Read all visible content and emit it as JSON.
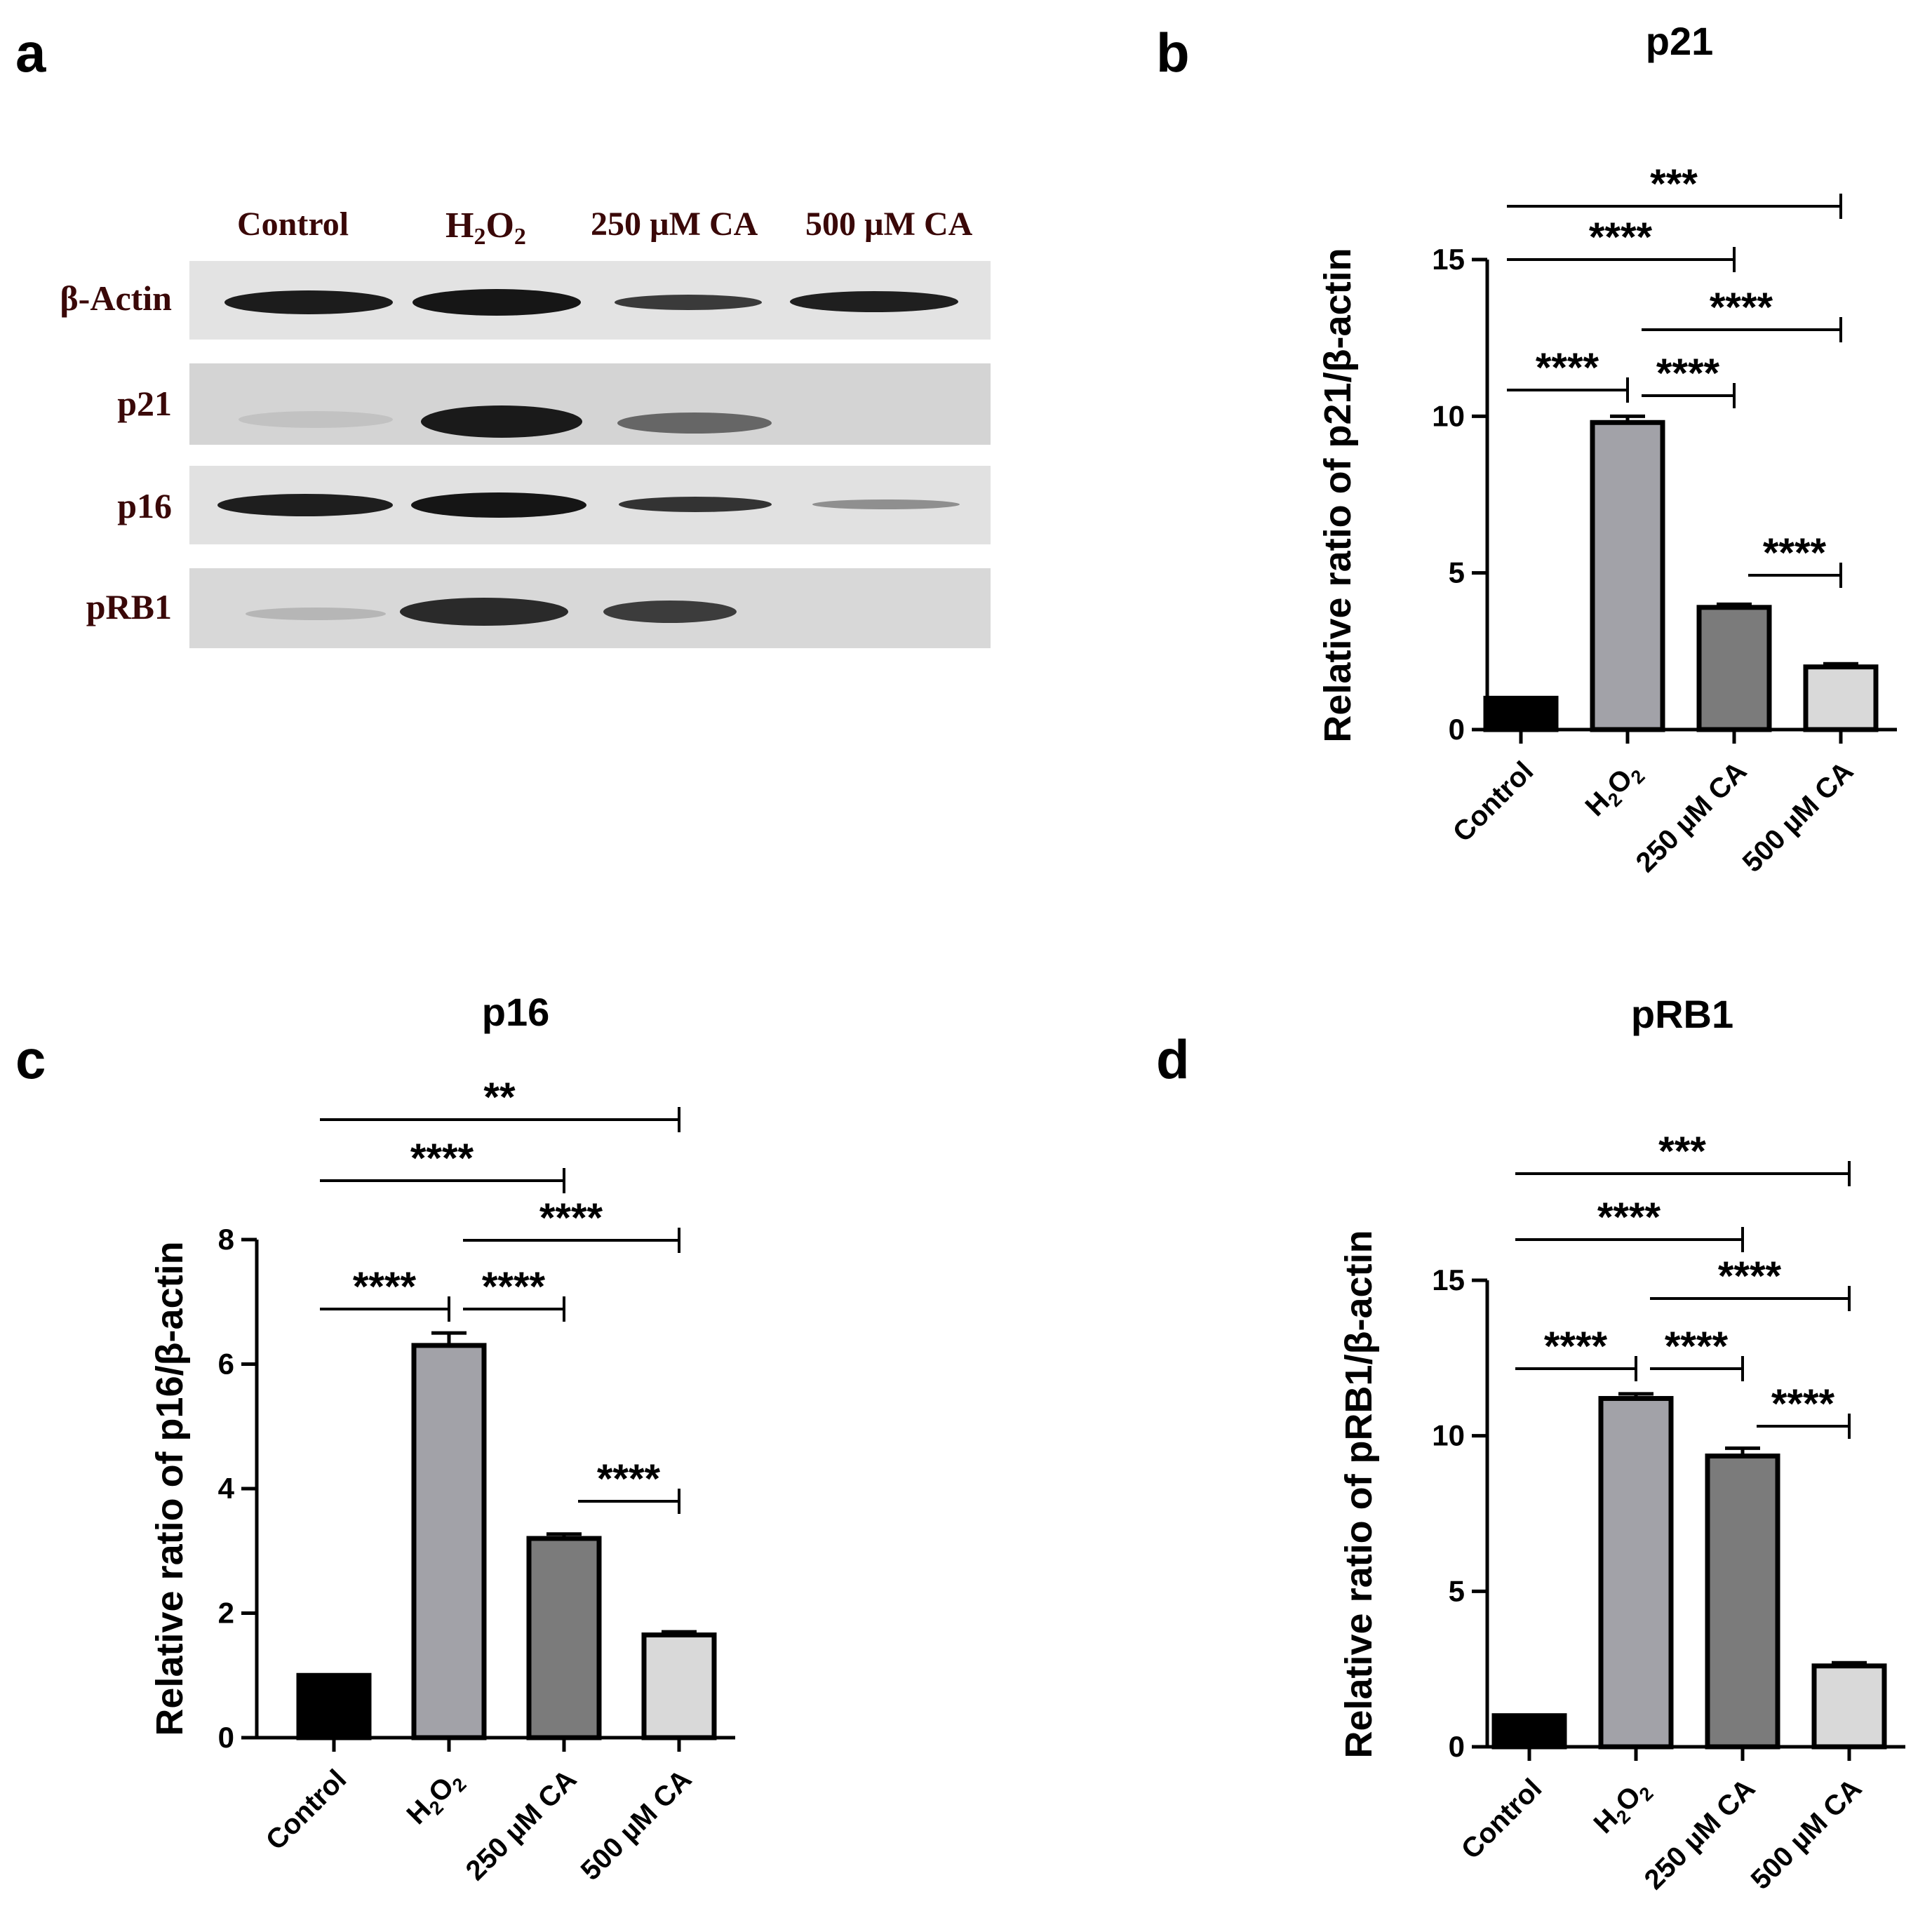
{
  "panels": {
    "a": "a",
    "b": "b",
    "c": "c",
    "d": "d"
  },
  "blot": {
    "lanes": [
      "Control",
      "H2O2",
      "250 µM CA",
      "500 µM CA"
    ],
    "lane_h2o2": {
      "main": "H",
      "sub1": "2",
      "mid": "O",
      "sub2": "2"
    },
    "rows": [
      "β-Actin",
      "p21",
      "p16",
      "pRB1"
    ]
  },
  "colors": {
    "Control": "#000000",
    "H2O2": "#a2a2a8",
    "250 µM CA": "#7b7b7b",
    "500 µM CA": "#d9d9d9"
  },
  "chart_data": [
    {
      "panel": "b",
      "type": "bar",
      "title": "p21",
      "ylabel": "Relative ratio of p21/β-actin",
      "categories": [
        "Control",
        "H2O2",
        "250 µM CA",
        "500 µM CA"
      ],
      "values": [
        1.0,
        9.8,
        3.9,
        2.0
      ],
      "errors": [
        0,
        0.2,
        0.1,
        0.1
      ],
      "ylim": [
        0,
        15
      ],
      "yticks": [
        0,
        5,
        10,
        15
      ],
      "significance": [
        {
          "from": 0,
          "to": 1,
          "label": "****"
        },
        {
          "from": 1,
          "to": 2,
          "label": "****"
        },
        {
          "from": 2,
          "to": 3,
          "label": "****"
        },
        {
          "from": 0,
          "to": 2,
          "label": "****"
        },
        {
          "from": 0,
          "to": 3,
          "label": "***"
        },
        {
          "from": 1,
          "to": 3,
          "label": "****"
        }
      ]
    },
    {
      "panel": "c",
      "type": "bar",
      "title": "p16",
      "ylabel": "Relative ratio of p16/β-actin",
      "categories": [
        "Control",
        "H2O2",
        "250 µM CA",
        "500 µM CA"
      ],
      "values": [
        1.0,
        6.3,
        3.2,
        1.65
      ],
      "errors": [
        0,
        0.2,
        0.07,
        0.05
      ],
      "ylim": [
        0,
        8
      ],
      "yticks": [
        0,
        2,
        4,
        6,
        8
      ],
      "significance": [
        {
          "from": 0,
          "to": 1,
          "label": "****"
        },
        {
          "from": 1,
          "to": 2,
          "label": "****"
        },
        {
          "from": 2,
          "to": 3,
          "label": "****"
        },
        {
          "from": 0,
          "to": 2,
          "label": "****"
        },
        {
          "from": 0,
          "to": 3,
          "label": "**"
        },
        {
          "from": 1,
          "to": 3,
          "label": "****"
        }
      ]
    },
    {
      "panel": "d",
      "type": "bar",
      "title": "pRB1",
      "ylabel": "Relative ratio of pRB1/β-actin",
      "categories": [
        "Control",
        "H2O2",
        "250 µM CA",
        "500 µM CA"
      ],
      "values": [
        1.0,
        11.2,
        9.35,
        2.6
      ],
      "errors": [
        0,
        0.15,
        0.25,
        0.1
      ],
      "ylim": [
        0,
        15
      ],
      "yticks": [
        0,
        5,
        10,
        15
      ],
      "significance": [
        {
          "from": 0,
          "to": 1,
          "label": "****"
        },
        {
          "from": 1,
          "to": 2,
          "label": "****"
        },
        {
          "from": 2,
          "to": 3,
          "label": "****"
        },
        {
          "from": 0,
          "to": 2,
          "label": "****"
        },
        {
          "from": 0,
          "to": 3,
          "label": "***"
        },
        {
          "from": 1,
          "to": 3,
          "label": "****"
        }
      ]
    }
  ]
}
